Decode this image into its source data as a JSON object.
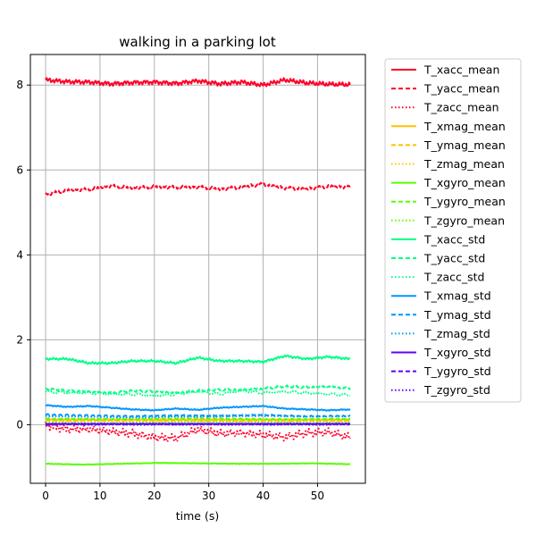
{
  "chart_data": {
    "type": "line",
    "title": "walking in a parking lot",
    "xlabel": "time (s)",
    "ylabel": "",
    "xlim": [
      -2.8,
      58.8
    ],
    "ylim": [
      -1.38,
      8.72
    ],
    "xticks": [
      0,
      10,
      20,
      30,
      40,
      50
    ],
    "yticks": [
      0,
      2,
      4,
      6,
      8
    ],
    "grid": true,
    "legend_position": "outside-right",
    "x_range": [
      0,
      56
    ],
    "series": [
      {
        "name": "T_xacc_mean",
        "color": "#ff0029",
        "style": "solid",
        "x": [
          0,
          4,
          8,
          12,
          16,
          20,
          24,
          28,
          32,
          36,
          40,
          44,
          48,
          52,
          56
        ],
        "y": [
          8.12,
          8.08,
          8.07,
          8.03,
          8.06,
          8.07,
          8.04,
          8.1,
          8.03,
          8.07,
          8.0,
          8.12,
          8.05,
          8.02,
          8.01
        ],
        "jitter": 0.04
      },
      {
        "name": "T_yacc_mean",
        "color": "#ff0029",
        "style": "dashed",
        "x": [
          0,
          4,
          8,
          12,
          16,
          20,
          24,
          28,
          32,
          36,
          40,
          44,
          48,
          52,
          56
        ],
        "y": [
          5.42,
          5.52,
          5.54,
          5.62,
          5.57,
          5.6,
          5.59,
          5.6,
          5.55,
          5.6,
          5.67,
          5.58,
          5.56,
          5.62,
          5.6
        ],
        "jitter": 0.03
      },
      {
        "name": "T_zacc_mean",
        "color": "#ff0029",
        "style": "dotted",
        "x": [
          0,
          4,
          8,
          12,
          16,
          20,
          24,
          28,
          32,
          36,
          40,
          44,
          48,
          52,
          56
        ],
        "y": [
          0.0,
          -0.1,
          -0.1,
          -0.16,
          -0.2,
          -0.3,
          -0.32,
          -0.12,
          -0.22,
          -0.2,
          -0.25,
          -0.3,
          -0.2,
          -0.18,
          -0.3
        ],
        "jitter": 0.07
      },
      {
        "name": "T_xmag_mean",
        "color": "#ffc100",
        "style": "solid",
        "x": [
          0,
          14,
          28,
          42,
          56
        ],
        "y": [
          0.12,
          0.12,
          0.12,
          0.12,
          0.12
        ],
        "jitter": 0.005
      },
      {
        "name": "T_ymag_mean",
        "color": "#ffc100",
        "style": "dashed",
        "x": [
          0,
          14,
          28,
          42,
          56
        ],
        "y": [
          0.1,
          0.1,
          0.1,
          0.1,
          0.1
        ],
        "jitter": 0.005
      },
      {
        "name": "T_zmag_mean",
        "color": "#ffc100",
        "style": "dotted",
        "x": [
          0,
          14,
          28,
          42,
          56
        ],
        "y": [
          0.08,
          0.08,
          0.08,
          0.08,
          0.08
        ],
        "jitter": 0.005
      },
      {
        "name": "T_xgyro_mean",
        "color": "#57ff00",
        "style": "solid",
        "x": [
          0,
          7,
          14,
          21,
          28,
          35,
          42,
          49,
          56
        ],
        "y": [
          -0.92,
          -0.94,
          -0.92,
          -0.9,
          -0.91,
          -0.92,
          -0.92,
          -0.91,
          -0.93
        ],
        "jitter": 0.005
      },
      {
        "name": "T_ygyro_mean",
        "color": "#57ff00",
        "style": "dashed",
        "x": [
          0,
          14,
          28,
          42,
          56
        ],
        "y": [
          0.14,
          0.13,
          0.15,
          0.13,
          0.14
        ],
        "jitter": 0.01
      },
      {
        "name": "T_zgyro_mean",
        "color": "#57ff00",
        "style": "dotted",
        "x": [
          0,
          14,
          28,
          42,
          56
        ],
        "y": [
          0.06,
          0.05,
          0.06,
          0.05,
          0.06
        ],
        "jitter": 0.01
      },
      {
        "name": "T_xacc_std",
        "color": "#00ff86",
        "style": "solid",
        "x": [
          0,
          4,
          8,
          12,
          16,
          20,
          24,
          28,
          32,
          36,
          40,
          44,
          48,
          52,
          56
        ],
        "y": [
          1.55,
          1.55,
          1.45,
          1.45,
          1.5,
          1.5,
          1.45,
          1.58,
          1.5,
          1.5,
          1.48,
          1.62,
          1.55,
          1.6,
          1.55
        ],
        "jitter": 0.02
      },
      {
        "name": "T_yacc_std",
        "color": "#00ff86",
        "style": "dashed",
        "x": [
          0,
          4,
          8,
          12,
          16,
          20,
          24,
          28,
          32,
          36,
          40,
          44,
          48,
          52,
          56
        ],
        "y": [
          0.85,
          0.8,
          0.78,
          0.75,
          0.8,
          0.78,
          0.75,
          0.8,
          0.82,
          0.82,
          0.85,
          0.9,
          0.88,
          0.9,
          0.85
        ],
        "jitter": 0.02
      },
      {
        "name": "T_zacc_std",
        "color": "#00ff86",
        "style": "dotted",
        "x": [
          0,
          4,
          8,
          12,
          16,
          20,
          24,
          28,
          32,
          36,
          40,
          44,
          48,
          52,
          56
        ],
        "y": [
          0.78,
          0.75,
          0.75,
          0.72,
          0.72,
          0.68,
          0.72,
          0.78,
          0.72,
          0.8,
          0.75,
          0.78,
          0.75,
          0.72,
          0.7
        ],
        "jitter": 0.02
      },
      {
        "name": "T_xmag_std",
        "color": "#0096ff",
        "style": "solid",
        "x": [
          0,
          4,
          8,
          12,
          16,
          20,
          24,
          28,
          32,
          36,
          40,
          44,
          48,
          52,
          56
        ],
        "y": [
          0.46,
          0.42,
          0.44,
          0.4,
          0.36,
          0.34,
          0.38,
          0.35,
          0.4,
          0.42,
          0.44,
          0.38,
          0.36,
          0.34,
          0.36
        ],
        "jitter": 0.01
      },
      {
        "name": "T_ymag_std",
        "color": "#0096ff",
        "style": "dashed",
        "x": [
          0,
          8,
          16,
          24,
          32,
          40,
          48,
          56
        ],
        "y": [
          0.24,
          0.22,
          0.2,
          0.22,
          0.21,
          0.23,
          0.2,
          0.21
        ],
        "jitter": 0.01
      },
      {
        "name": "T_zmag_std",
        "color": "#0096ff",
        "style": "dotted",
        "x": [
          0,
          8,
          16,
          24,
          32,
          40,
          48,
          56
        ],
        "y": [
          0.2,
          0.19,
          0.18,
          0.2,
          0.19,
          0.2,
          0.18,
          0.19
        ],
        "jitter": 0.01
      },
      {
        "name": "T_xgyro_std",
        "color": "#6000ff",
        "style": "solid",
        "x": [
          0,
          14,
          28,
          42,
          56
        ],
        "y": [
          0.02,
          0.02,
          0.02,
          0.02,
          0.02
        ],
        "jitter": 0.004
      },
      {
        "name": "T_ygyro_std",
        "color": "#6000ff",
        "style": "dashed",
        "x": [
          0,
          14,
          28,
          42,
          56
        ],
        "y": [
          0.01,
          0.01,
          0.01,
          0.01,
          0.01
        ],
        "jitter": 0.004
      },
      {
        "name": "T_zgyro_std",
        "color": "#6000ff",
        "style": "dotted",
        "x": [
          0,
          14,
          28,
          42,
          56
        ],
        "y": [
          0.0,
          0.0,
          0.0,
          0.0,
          0.0
        ],
        "jitter": 0.004
      }
    ]
  }
}
